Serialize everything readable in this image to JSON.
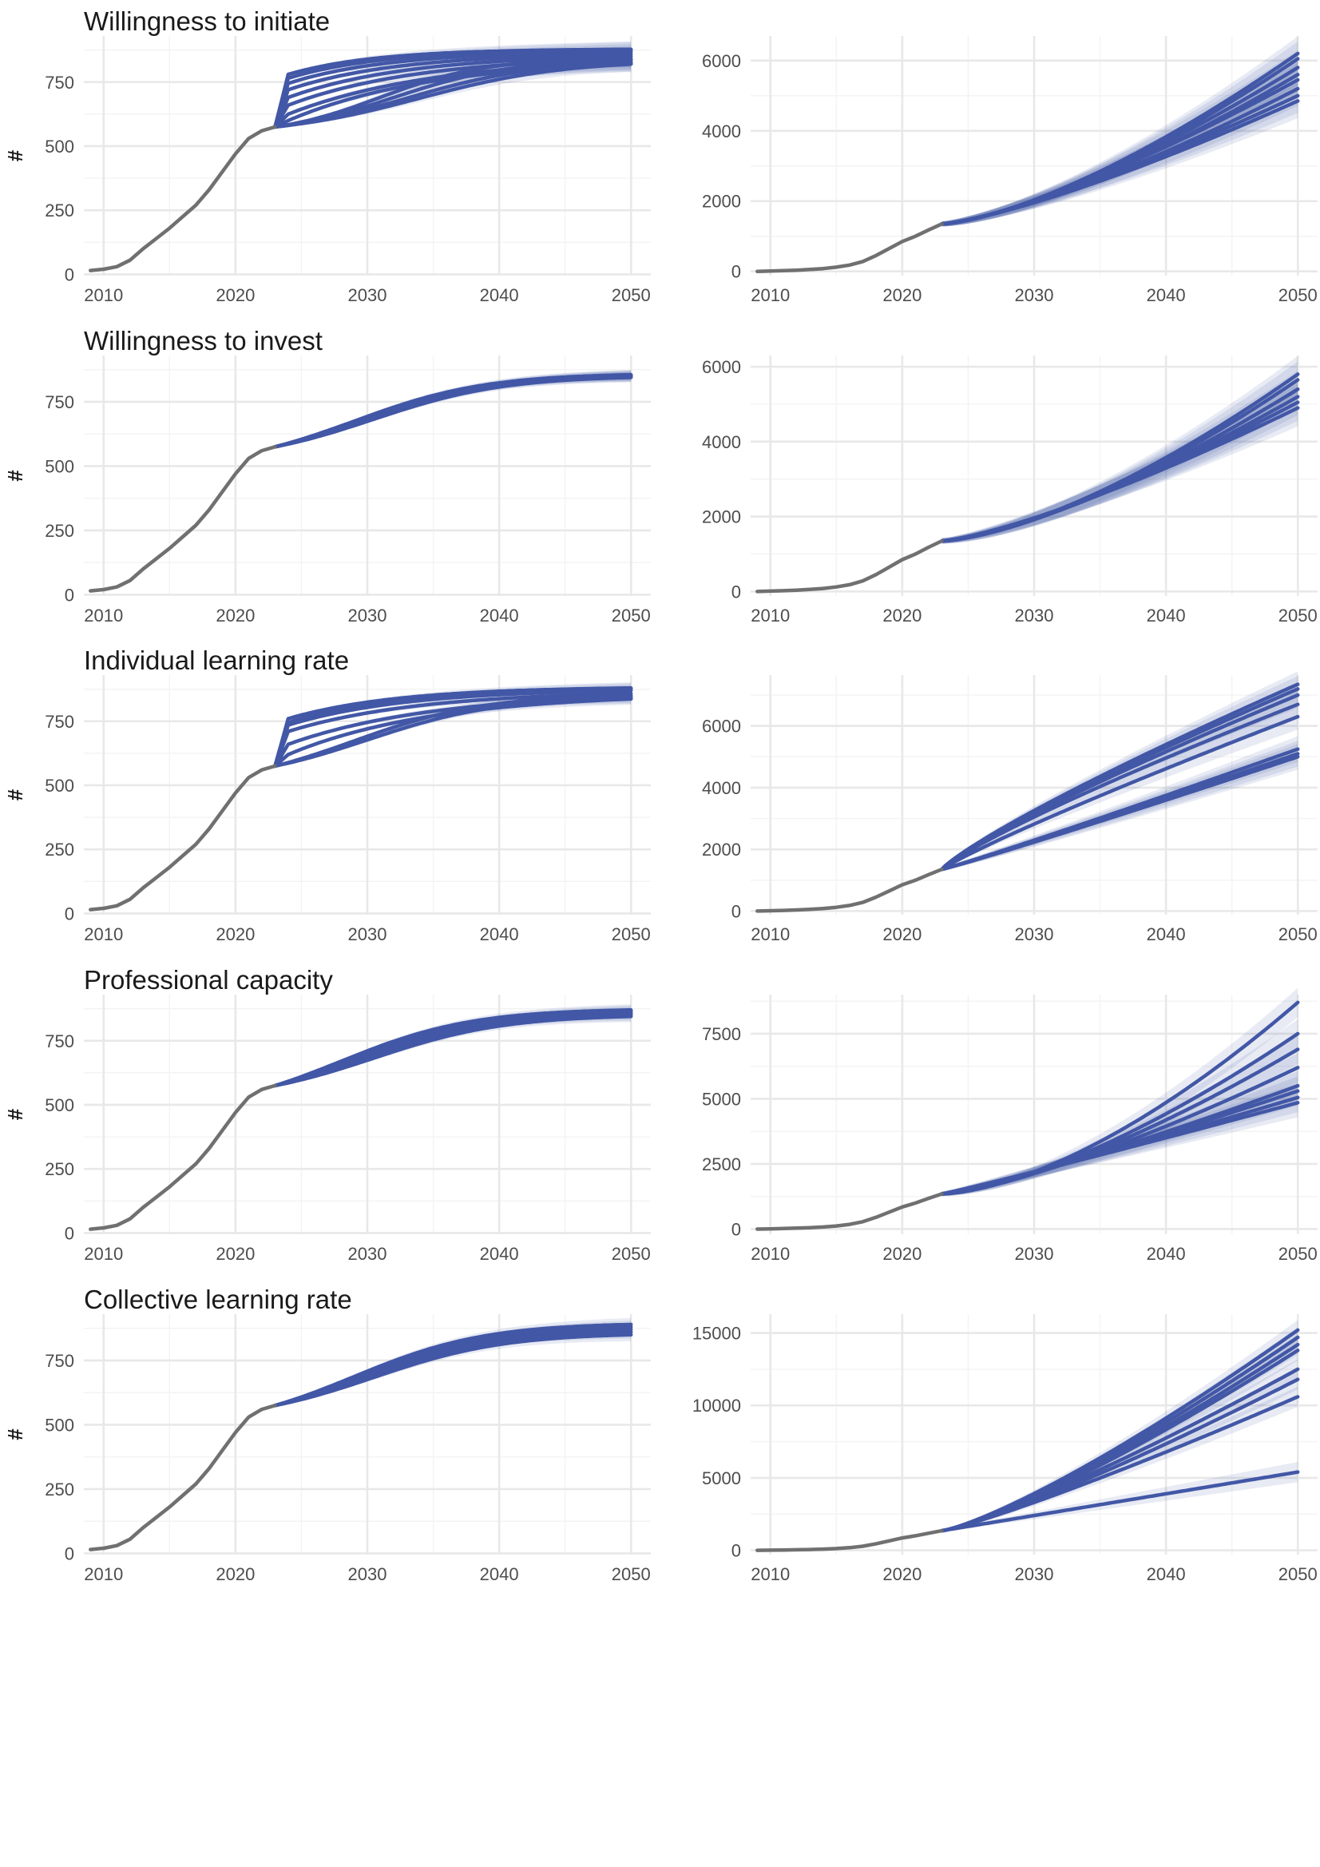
{
  "figure": {
    "ylabel": "#",
    "hist_end_year": 2023,
    "colors": {
      "historical": "#707070",
      "scenario": "#4257a6",
      "band": "#4257a6"
    }
  },
  "chart_data": [
    {
      "type": "line",
      "title": "Willingness to initiate",
      "ylabel": "#",
      "xlim": [
        2008.5,
        2051.5
      ],
      "ylim": [
        -5,
        930
      ],
      "xticks": [
        2010,
        2020,
        2030,
        2040,
        2050
      ],
      "yticks": [
        0,
        250,
        500,
        750
      ],
      "yticklabels": [
        "0",
        "250",
        "500",
        "750"
      ],
      "historical": {
        "x": [
          2009,
          2010,
          2011,
          2012,
          2013,
          2014,
          2015,
          2016,
          2017,
          2018,
          2019,
          2020,
          2021,
          2022,
          2023
        ],
        "y": [
          15,
          20,
          30,
          55,
          100,
          140,
          180,
          225,
          270,
          330,
          400,
          470,
          530,
          560,
          575
        ]
      },
      "scenarios": {
        "start": 575,
        "curves": [
          {
            "y2024": 780,
            "end": 880,
            "k": 0.15
          },
          {
            "y2024": 765,
            "end": 878,
            "k": 0.14
          },
          {
            "y2024": 745,
            "end": 872,
            "k": 0.13
          },
          {
            "y2024": 720,
            "end": 865,
            "k": 0.12
          },
          {
            "y2024": 690,
            "end": 860,
            "k": 0.11
          },
          {
            "y2024": 660,
            "end": 855,
            "k": 0.1
          },
          {
            "y2024": 625,
            "end": 850,
            "k": 0.09
          },
          {
            "y2024": 600,
            "end": 845,
            "k": 0.09
          },
          {
            "y2024": 585,
            "end": 840,
            "k": 0.08,
            "mid": 2031,
            "s": 4
          },
          {
            "y2024": 578,
            "end": 835,
            "k": 0.08,
            "mid": 2032,
            "s": 4.5
          },
          {
            "y2024": 577,
            "end": 825,
            "k": 0.08,
            "mid": 2033,
            "s": 5
          },
          {
            "y2024": 576,
            "end": 820,
            "k": 0.08,
            "mid": 2034,
            "s": 5.5
          }
        ],
        "band": 22
      }
    },
    {
      "type": "line",
      "title": "",
      "ylabel": "",
      "xlim": [
        2008.5,
        2051.5
      ],
      "ylim": [
        -120,
        6700
      ],
      "xticks": [
        2010,
        2020,
        2030,
        2040,
        2050
      ],
      "yticks": [
        0,
        2000,
        4000,
        6000
      ],
      "yticklabels": [
        "0",
        "2000",
        "4000",
        "6000"
      ],
      "historical": {
        "x": [
          2009,
          2010,
          2011,
          2012,
          2013,
          2014,
          2015,
          2016,
          2017,
          2018,
          2019,
          2020,
          2021,
          2022,
          2023
        ],
        "y": [
          0,
          10,
          20,
          35,
          55,
          80,
          120,
          180,
          280,
          450,
          650,
          850,
          1000,
          1180,
          1350
        ]
      },
      "scenarios": {
        "start": 1350,
        "curves": [
          {
            "end": 6200,
            "p": 1.45
          },
          {
            "end": 6050,
            "p": 1.45
          },
          {
            "end": 5800,
            "p": 1.4
          },
          {
            "end": 5600,
            "p": 1.4
          },
          {
            "end": 5450,
            "p": 1.35
          },
          {
            "end": 5200,
            "p": 1.35
          },
          {
            "end": 5000,
            "p": 1.3
          },
          {
            "end": 4850,
            "p": 1.3
          }
        ],
        "band": 350
      }
    },
    {
      "type": "line",
      "title": "Willingness to invest",
      "ylabel": "#",
      "xlim": [
        2008.5,
        2051.5
      ],
      "ylim": [
        -5,
        930
      ],
      "xticks": [
        2010,
        2020,
        2030,
        2040,
        2050
      ],
      "yticks": [
        0,
        250,
        500,
        750
      ],
      "yticklabels": [
        "0",
        "250",
        "500",
        "750"
      ],
      "historical": {
        "x": [
          2009,
          2010,
          2011,
          2012,
          2013,
          2014,
          2015,
          2016,
          2017,
          2018,
          2019,
          2020,
          2021,
          2022,
          2023
        ],
        "y": [
          15,
          20,
          30,
          55,
          100,
          140,
          180,
          225,
          270,
          330,
          400,
          470,
          530,
          560,
          575
        ]
      },
      "scenarios": {
        "start": 575,
        "curves": [
          {
            "end": 855,
            "k": 0.07,
            "mid": 2029,
            "s": 5
          },
          {
            "end": 853,
            "k": 0.07,
            "mid": 2029.3,
            "s": 5
          },
          {
            "end": 851,
            "k": 0.07,
            "mid": 2029.6,
            "s": 5
          },
          {
            "end": 849,
            "k": 0.07,
            "mid": 2029.9,
            "s": 5
          },
          {
            "end": 847,
            "k": 0.07,
            "mid": 2030.2,
            "s": 5
          },
          {
            "end": 845,
            "k": 0.07,
            "mid": 2030.5,
            "s": 5
          }
        ],
        "band": 14
      }
    },
    {
      "type": "line",
      "title": "",
      "ylabel": "",
      "xlim": [
        2008.5,
        2051.5
      ],
      "ylim": [
        -120,
        6300
      ],
      "xticks": [
        2010,
        2020,
        2030,
        2040,
        2050
      ],
      "yticks": [
        0,
        2000,
        4000,
        6000
      ],
      "yticklabels": [
        "0",
        "2000",
        "4000",
        "6000"
      ],
      "historical": {
        "x": [
          2009,
          2010,
          2011,
          2012,
          2013,
          2014,
          2015,
          2016,
          2017,
          2018,
          2019,
          2020,
          2021,
          2022,
          2023
        ],
        "y": [
          0,
          10,
          20,
          35,
          55,
          80,
          120,
          180,
          280,
          450,
          650,
          850,
          1000,
          1180,
          1350
        ]
      },
      "scenarios": {
        "start": 1350,
        "curves": [
          {
            "end": 5800,
            "p": 1.5
          },
          {
            "end": 5650,
            "p": 1.5
          },
          {
            "end": 5400,
            "p": 1.45
          },
          {
            "end": 5200,
            "p": 1.4
          },
          {
            "end": 5050,
            "p": 1.35
          },
          {
            "end": 4900,
            "p": 1.3
          }
        ],
        "band": 350
      }
    },
    {
      "type": "line",
      "title": "Individual learning rate",
      "ylabel": "#",
      "xlim": [
        2008.5,
        2051.5
      ],
      "ylim": [
        -5,
        930
      ],
      "xticks": [
        2010,
        2020,
        2030,
        2040,
        2050
      ],
      "yticks": [
        0,
        250,
        500,
        750
      ],
      "yticklabels": [
        "0",
        "250",
        "500",
        "750"
      ],
      "historical": {
        "x": [
          2009,
          2010,
          2011,
          2012,
          2013,
          2014,
          2015,
          2016,
          2017,
          2018,
          2019,
          2020,
          2021,
          2022,
          2023
        ],
        "y": [
          15,
          20,
          30,
          55,
          100,
          140,
          180,
          225,
          270,
          330,
          400,
          470,
          530,
          560,
          575
        ]
      },
      "scenarios": {
        "start": 575,
        "curves": [
          {
            "y2024": 760,
            "end": 885,
            "k": 0.12
          },
          {
            "y2024": 745,
            "end": 882,
            "k": 0.12
          },
          {
            "y2024": 735,
            "end": 878,
            "k": 0.11
          },
          {
            "y2024": 710,
            "end": 870,
            "k": 0.1
          },
          {
            "y2024": 660,
            "end": 865,
            "k": 0.09
          },
          {
            "y2024": 620,
            "end": 860,
            "k": 0.09
          },
          {
            "y2024": 590,
            "end": 850,
            "k": 0.08,
            "mid": 2029,
            "s": 5
          },
          {
            "y2024": 580,
            "end": 840,
            "k": 0.08,
            "mid": 2030,
            "s": 5
          }
        ],
        "band": 16
      }
    },
    {
      "type": "line",
      "title": "",
      "ylabel": "",
      "xlim": [
        2008.5,
        2051.5
      ],
      "ylim": [
        -120,
        7650
      ],
      "xticks": [
        2010,
        2020,
        2030,
        2040,
        2050
      ],
      "yticks": [
        0,
        2000,
        4000,
        6000
      ],
      "yticklabels": [
        "0",
        "2000",
        "4000",
        "6000"
      ],
      "historical": {
        "x": [
          2009,
          2010,
          2011,
          2012,
          2013,
          2014,
          2015,
          2016,
          2017,
          2018,
          2019,
          2020,
          2021,
          2022,
          2023
        ],
        "y": [
          0,
          10,
          20,
          35,
          55,
          80,
          120,
          180,
          280,
          450,
          650,
          850,
          1000,
          1180,
          1350
        ]
      },
      "scenarios": {
        "start": 1350,
        "curves": [
          {
            "end": 7350,
            "p": 0.85
          },
          {
            "end": 7200,
            "p": 0.85
          },
          {
            "end": 7000,
            "p": 0.85
          },
          {
            "end": 6700,
            "p": 0.85
          },
          {
            "end": 6300,
            "p": 0.9
          },
          {
            "end": 5250,
            "p": 1.05
          },
          {
            "end": 5100,
            "p": 1.05
          },
          {
            "end": 5000,
            "p": 1.05
          }
        ],
        "band": 300
      }
    },
    {
      "type": "line",
      "title": "Professional capacity",
      "ylabel": "#",
      "xlim": [
        2008.5,
        2051.5
      ],
      "ylim": [
        -5,
        930
      ],
      "xticks": [
        2010,
        2020,
        2030,
        2040,
        2050
      ],
      "yticks": [
        0,
        250,
        500,
        750
      ],
      "yticklabels": [
        "0",
        "250",
        "500",
        "750"
      ],
      "historical": {
        "x": [
          2009,
          2010,
          2011,
          2012,
          2013,
          2014,
          2015,
          2016,
          2017,
          2018,
          2019,
          2020,
          2021,
          2022,
          2023
        ],
        "y": [
          15,
          20,
          30,
          55,
          100,
          140,
          180,
          225,
          270,
          330,
          400,
          470,
          530,
          560,
          575
        ]
      },
      "scenarios": {
        "start": 575,
        "curves": [
          {
            "end": 870,
            "k": 0.075,
            "mid": 2028,
            "s": 5
          },
          {
            "end": 865,
            "k": 0.075,
            "mid": 2028.5,
            "s": 5
          },
          {
            "end": 860,
            "k": 0.075,
            "mid": 2029,
            "s": 5
          },
          {
            "end": 855,
            "k": 0.075,
            "mid": 2029.5,
            "s": 5
          },
          {
            "end": 850,
            "k": 0.075,
            "mid": 2030,
            "s": 5
          },
          {
            "end": 845,
            "k": 0.075,
            "mid": 2030.5,
            "s": 5
          }
        ],
        "band": 16
      }
    },
    {
      "type": "line",
      "title": "",
      "ylabel": "",
      "xlim": [
        2008.5,
        2051.5
      ],
      "ylim": [
        -200,
        9000
      ],
      "xticks": [
        2010,
        2020,
        2030,
        2040,
        2050
      ],
      "yticks": [
        0,
        2500,
        5000,
        7500
      ],
      "yticklabels": [
        "0",
        "2500",
        "5000",
        "7500"
      ],
      "historical": {
        "x": [
          2009,
          2010,
          2011,
          2012,
          2013,
          2014,
          2015,
          2016,
          2017,
          2018,
          2019,
          2020,
          2021,
          2022,
          2023
        ],
        "y": [
          0,
          10,
          20,
          35,
          55,
          80,
          120,
          180,
          280,
          450,
          650,
          850,
          1000,
          1180,
          1350
        ]
      },
      "scenarios": {
        "start": 1350,
        "curves": [
          {
            "end": 8700,
            "p": 1.6
          },
          {
            "end": 7500,
            "p": 1.5
          },
          {
            "end": 6900,
            "p": 1.45
          },
          {
            "end": 6200,
            "p": 1.35
          },
          {
            "end": 5500,
            "p": 1.2
          },
          {
            "end": 5300,
            "p": 1.15
          },
          {
            "end": 5050,
            "p": 1.1
          },
          {
            "end": 4850,
            "p": 1.05
          }
        ],
        "band": 400
      }
    },
    {
      "type": "line",
      "title": "Collective learning rate",
      "ylabel": "#",
      "xlim": [
        2008.5,
        2051.5
      ],
      "ylim": [
        -5,
        930
      ],
      "xticks": [
        2010,
        2020,
        2030,
        2040,
        2050
      ],
      "yticks": [
        0,
        250,
        500,
        750
      ],
      "yticklabels": [
        "0",
        "250",
        "500",
        "750"
      ],
      "historical": {
        "x": [
          2009,
          2010,
          2011,
          2012,
          2013,
          2014,
          2015,
          2016,
          2017,
          2018,
          2019,
          2020,
          2021,
          2022,
          2023
        ],
        "y": [
          15,
          20,
          30,
          55,
          100,
          140,
          180,
          225,
          270,
          330,
          400,
          470,
          530,
          560,
          575
        ]
      },
      "scenarios": {
        "start": 575,
        "curves": [
          {
            "end": 890,
            "k": 0.075,
            "mid": 2029,
            "s": 5
          },
          {
            "end": 880,
            "k": 0.075,
            "mid": 2029,
            "s": 5
          },
          {
            "end": 870,
            "k": 0.075,
            "mid": 2029.5,
            "s": 5
          },
          {
            "end": 860,
            "k": 0.075,
            "mid": 2030,
            "s": 5
          },
          {
            "end": 850,
            "k": 0.075,
            "mid": 2030.5,
            "s": 5
          }
        ],
        "band": 18
      }
    },
    {
      "type": "line",
      "title": "",
      "ylabel": "",
      "xlim": [
        2008.5,
        2051.5
      ],
      "ylim": [
        -300,
        16300
      ],
      "xticks": [
        2010,
        2020,
        2030,
        2040,
        2050
      ],
      "yticks": [
        0,
        5000,
        10000,
        15000
      ],
      "yticklabels": [
        "0",
        "5000",
        "10000",
        "15000"
      ],
      "historical": {
        "x": [
          2009,
          2010,
          2011,
          2012,
          2013,
          2014,
          2015,
          2016,
          2017,
          2018,
          2019,
          2020,
          2021,
          2022,
          2023
        ],
        "y": [
          0,
          10,
          20,
          35,
          55,
          80,
          120,
          180,
          280,
          450,
          650,
          850,
          1000,
          1180,
          1350
        ]
      },
      "scenarios": {
        "start": 1350,
        "curves": [
          {
            "end": 15200,
            "p": 1.25
          },
          {
            "end": 14700,
            "p": 1.25
          },
          {
            "end": 14200,
            "p": 1.25
          },
          {
            "end": 13800,
            "p": 1.25
          },
          {
            "end": 12500,
            "p": 1.2
          },
          {
            "end": 11800,
            "p": 1.2
          },
          {
            "end": 10600,
            "p": 1.15
          },
          {
            "end": 5400,
            "p": 1.0
          }
        ],
        "band": 500
      }
    }
  ]
}
